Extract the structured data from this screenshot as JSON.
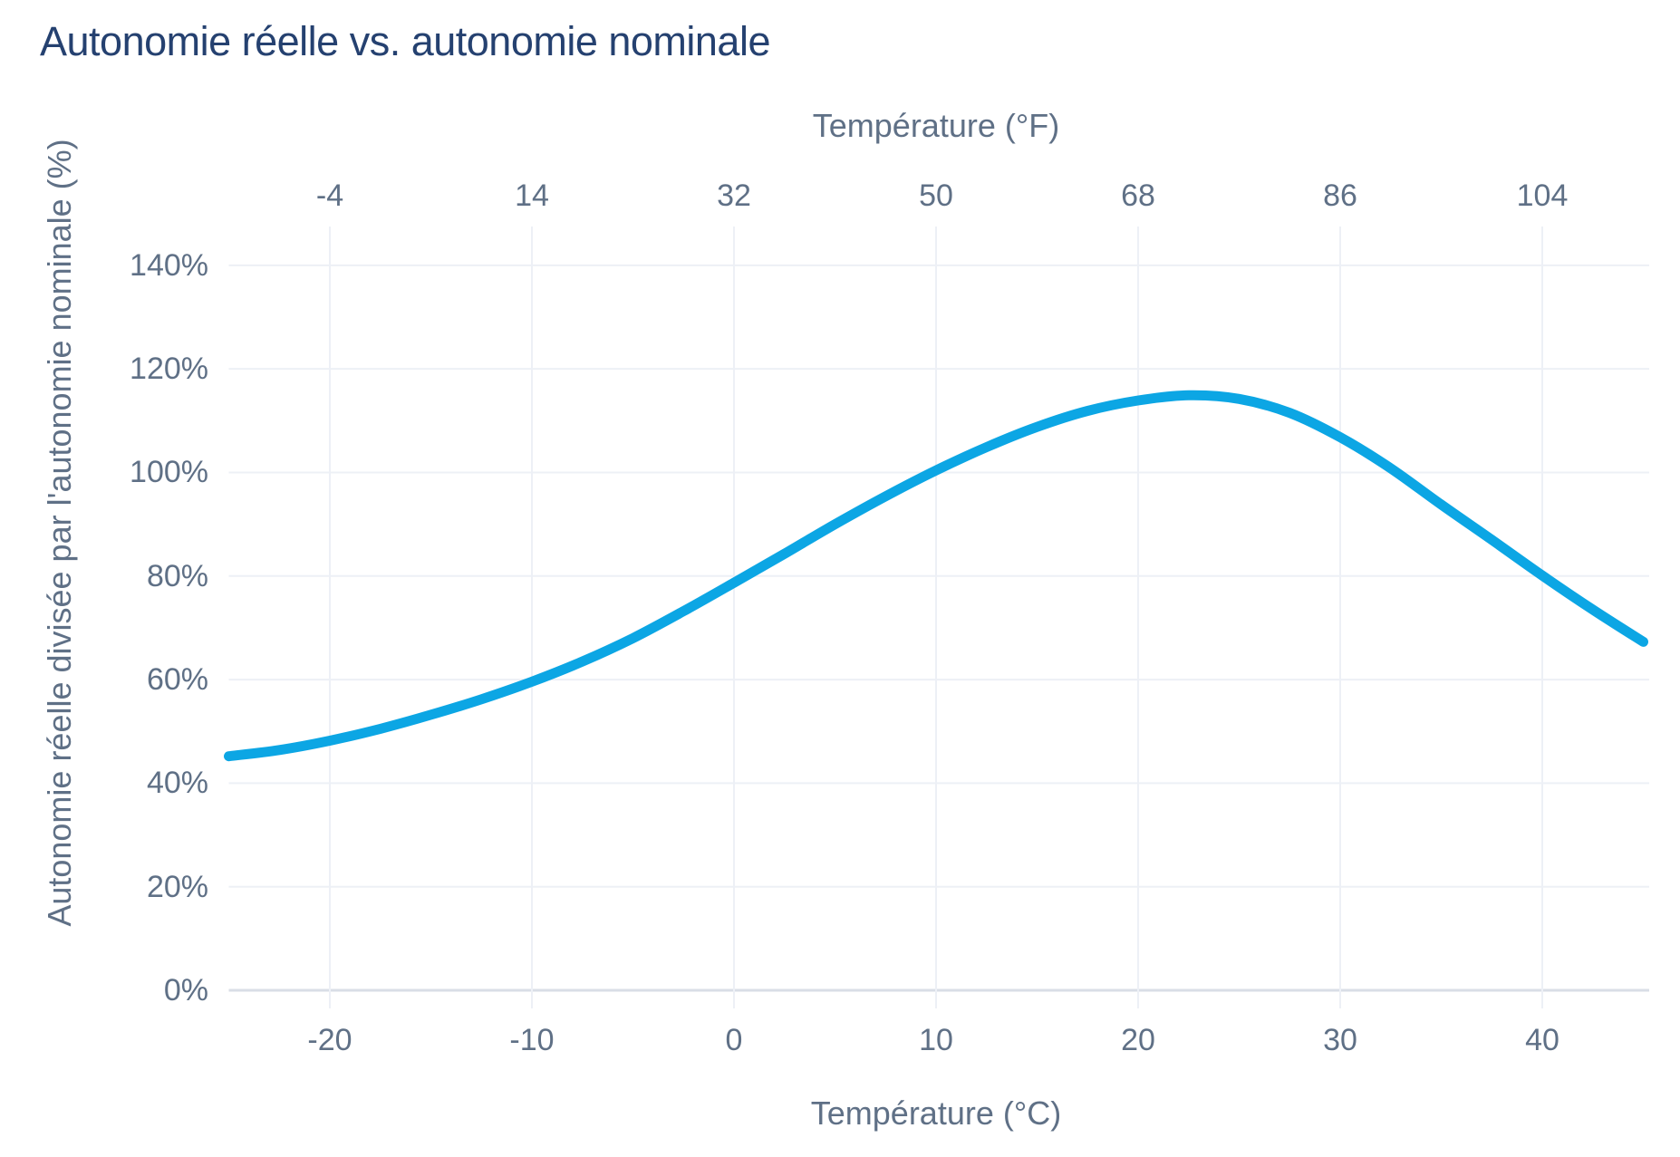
{
  "title": "Autonomie réelle vs. autonomie nominale",
  "colors": {
    "title": "#254170",
    "axis_text": "#5f7086",
    "grid": "#edf0f6",
    "axis_line": "#d9dee6",
    "line": "#0ca6e4",
    "background": "#ffffff"
  },
  "chart_data": {
    "type": "line",
    "title": "Autonomie réelle vs. autonomie nominale",
    "x_axis_bottom": {
      "label": "Température (°C)",
      "tick_values": [
        -20,
        -10,
        0,
        10,
        20,
        30,
        40
      ],
      "range": [
        -25,
        45
      ]
    },
    "x_axis_top": {
      "label": "Température (°F)",
      "tick_values": [
        -4,
        14,
        32,
        50,
        68,
        86,
        104
      ],
      "range": [
        -13,
        113
      ]
    },
    "y_axis": {
      "label": "Autonomie réelle divisée par l'autonomie nominale (%)",
      "tick_values": [
        0,
        20,
        40,
        60,
        80,
        100,
        120,
        140
      ],
      "tick_suffix": "%",
      "range": [
        0,
        147.5
      ]
    },
    "grid": true,
    "legend": false,
    "series": [
      {
        "color": "#0ca6e4",
        "stroke_width": 11,
        "points": [
          [
            -25,
            45.2
          ],
          [
            -22.5,
            46.4
          ],
          [
            -20,
            48.2
          ],
          [
            -17.5,
            50.5
          ],
          [
            -15,
            53.2
          ],
          [
            -12.5,
            56.2
          ],
          [
            -10,
            59.6
          ],
          [
            -7.5,
            63.5
          ],
          [
            -5,
            68.0
          ],
          [
            -2.5,
            73.2
          ],
          [
            0,
            78.7
          ],
          [
            2.5,
            84.3
          ],
          [
            5,
            90.0
          ],
          [
            7.5,
            95.4
          ],
          [
            10,
            100.4
          ],
          [
            12.5,
            104.9
          ],
          [
            15,
            108.8
          ],
          [
            17.5,
            111.9
          ],
          [
            20,
            113.9
          ],
          [
            22.5,
            114.9
          ],
          [
            25,
            114.2
          ],
          [
            27.5,
            111.5
          ],
          [
            30,
            106.8
          ],
          [
            32.5,
            100.8
          ],
          [
            35,
            93.8
          ],
          [
            37.5,
            87.0
          ],
          [
            40,
            80.1
          ],
          [
            42.5,
            73.5
          ],
          [
            45,
            67.3
          ]
        ]
      }
    ]
  }
}
